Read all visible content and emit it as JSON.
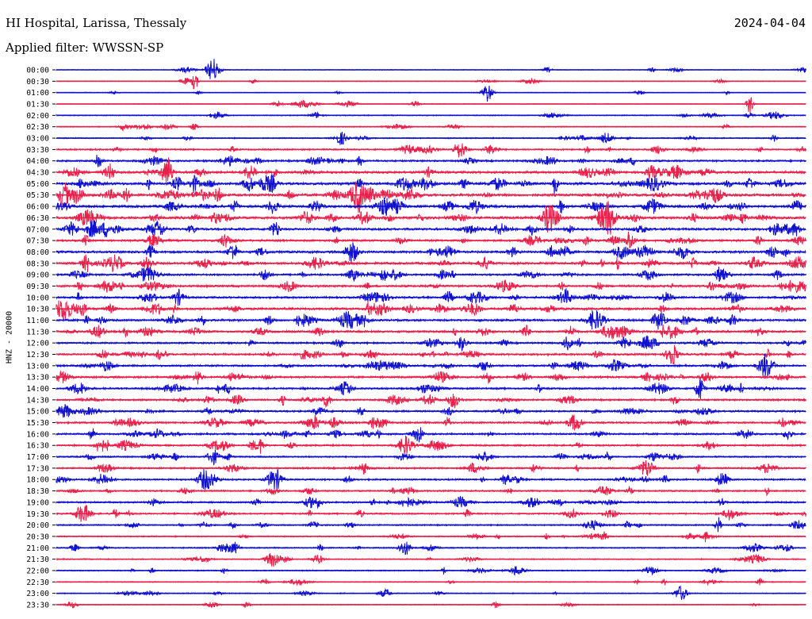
{
  "header": {
    "station": "HI Hospital, Larissa, Thessaly",
    "date": "2024-04-04",
    "filter": "Applied filter: WWSSN-SP"
  },
  "chart_data": {
    "type": "line",
    "ylabel": "HNZ - 20000",
    "xlabel": "",
    "row_labels": [
      "00:00",
      "00:30",
      "01:00",
      "01:30",
      "02:00",
      "02:30",
      "03:00",
      "03:30",
      "04:00",
      "04:30",
      "05:00",
      "05:30",
      "06:00",
      "06:30",
      "07:00",
      "07:30",
      "08:00",
      "08:30",
      "09:00",
      "09:30",
      "10:00",
      "10:30",
      "11:00",
      "11:30",
      "12:00",
      "12:30",
      "13:00",
      "13:30",
      "14:00",
      "14:30",
      "15:00",
      "15:30",
      "16:00",
      "16:30",
      "17:00",
      "17:30",
      "18:00",
      "18:30",
      "19:00",
      "19:30",
      "20:00",
      "20:30",
      "21:00",
      "21:30",
      "22:00",
      "22:30",
      "23:00",
      "23:30"
    ],
    "series_colors": [
      "#1010d0",
      "#e8204a"
    ],
    "row_activity": [
      0.05,
      0.05,
      0.05,
      0.05,
      0.15,
      0.15,
      0.2,
      0.35,
      0.45,
      0.6,
      0.7,
      0.7,
      0.65,
      0.7,
      0.6,
      0.5,
      0.6,
      0.6,
      0.5,
      0.55,
      0.5,
      0.6,
      0.55,
      0.55,
      0.45,
      0.5,
      0.45,
      0.5,
      0.45,
      0.45,
      0.45,
      0.45,
      0.45,
      0.4,
      0.35,
      0.4,
      0.4,
      0.35,
      0.4,
      0.35,
      0.3,
      0.25,
      0.25,
      0.2,
      0.2,
      0.15,
      0.15,
      0.1
    ]
  }
}
